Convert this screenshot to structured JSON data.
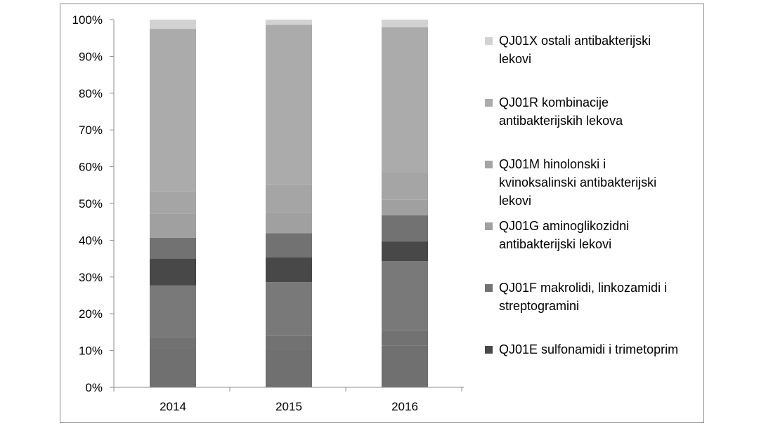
{
  "chart_data": {
    "type": "bar",
    "stacked": "percent",
    "categories": [
      "2014",
      "2015",
      "2016"
    ],
    "ylim": [
      0,
      100
    ],
    "ytick_labels": [
      "0%",
      "10%",
      "20%",
      "30%",
      "40%",
      "50%",
      "60%",
      "70%",
      "80%",
      "90%",
      "100%"
    ],
    "grid": false,
    "legend_position": "right",
    "series": [
      {
        "name": "",
        "color": "#707070",
        "values": [
          10.5,
          10.3,
          11.3
        ]
      },
      {
        "name": "",
        "color": "#727272",
        "values": [
          3.2,
          3.7,
          4.2
        ]
      },
      {
        "name": "",
        "color": "#797979",
        "values": [
          14.0,
          14.6,
          18.8
        ]
      },
      {
        "name": "QJ01E sulfonamidi i trimetoprim",
        "color": "#484848",
        "values": [
          7.3,
          6.7,
          5.3
        ]
      },
      {
        "name": "QJ01F makrolidi, linkozamidi i streptogramini",
        "color": "#727272",
        "values": [
          5.7,
          6.6,
          7.2
        ]
      },
      {
        "name": "QJ01G aminoglikozidni antibakterijski lekovi",
        "color": "#a0a0a0",
        "values": [
          6.5,
          5.5,
          4.2
        ]
      },
      {
        "name": "QJ01M hinolonski i kvinoksalinski antibakterijski lekovi",
        "color": "#a5a5a5",
        "values": [
          6.0,
          7.6,
          7.4
        ]
      },
      {
        "name": "QJ01R kombinacije antibakterijskih lekova",
        "color": "#ababab",
        "values": [
          44.3,
          43.6,
          39.5
        ]
      },
      {
        "name": "QJ01X ostali antibakterijski lekovi",
        "color": "#d2d2d2",
        "values": [
          2.5,
          1.4,
          2.1
        ]
      }
    ]
  },
  "legend": {
    "items": [
      {
        "lines": [
          "QJ01X ostali antibakterijski",
          "lekovi"
        ],
        "color": "#d2d2d2"
      },
      {
        "lines": [
          "QJ01R kombinacije",
          "antibakterijskih lekova"
        ],
        "color": "#ababab"
      },
      {
        "lines": [
          "QJ01M hinolonski i",
          "kvinoksalinski antibakterijski",
          "lekovi"
        ],
        "color": "#a5a5a5"
      },
      {
        "lines": [
          "QJ01G aminoglikozidni",
          "antibakterijski lekovi"
        ],
        "color": "#a0a0a0"
      },
      {
        "lines": [
          "QJ01F makrolidi, linkozamidi i",
          "streptogramini"
        ],
        "color": "#727272"
      },
      {
        "lines": [
          "QJ01E sulfonamidi i trimetoprim"
        ],
        "color": "#484848"
      }
    ]
  }
}
